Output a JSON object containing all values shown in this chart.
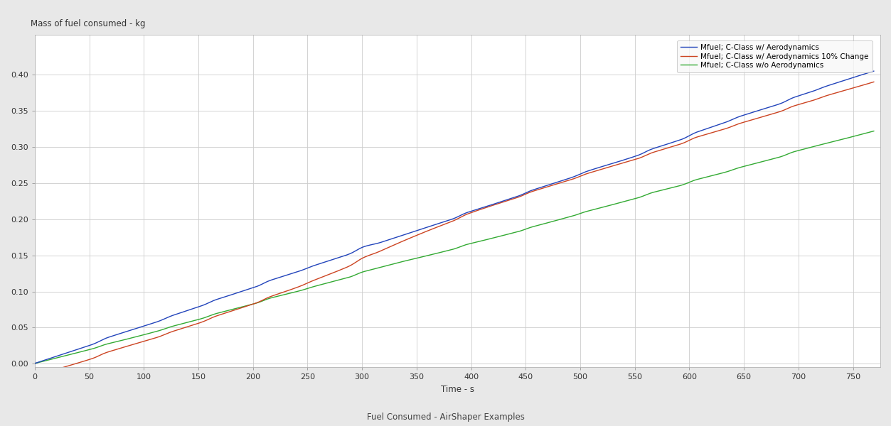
{
  "ylabel": "Mass of fuel consumed - kg",
  "xlabel": "Time - s",
  "subtitle": "Fuel Consumed - AirShaper Examples",
  "xlim": [
    0,
    775
  ],
  "ylim": [
    -0.005,
    0.455
  ],
  "xticks": [
    0,
    50,
    100,
    150,
    200,
    250,
    300,
    350,
    400,
    450,
    500,
    550,
    600,
    650,
    700,
    750
  ],
  "yticks": [
    0,
    0.05,
    0.1,
    0.15,
    0.2,
    0.25,
    0.3,
    0.35,
    0.4
  ],
  "line_blue_color": "#2244bb",
  "line_red_color": "#cc4422",
  "line_green_color": "#33aa33",
  "legend_labels": [
    "Mfuel; C-Class w/ Aerodynamics",
    "Mfuel; C-Class w/ Aerodynamics 10% Change",
    "Mfuel; C-Class w/o Aerodynamics"
  ],
  "fig_bg_color": "#e8e8e8",
  "plot_bg_color": "#ffffff",
  "grid_color": "#cccccc",
  "linewidth": 1.0,
  "legend_fontsize": 7.5,
  "tick_fontsize": 8,
  "label_fontsize": 8.5
}
